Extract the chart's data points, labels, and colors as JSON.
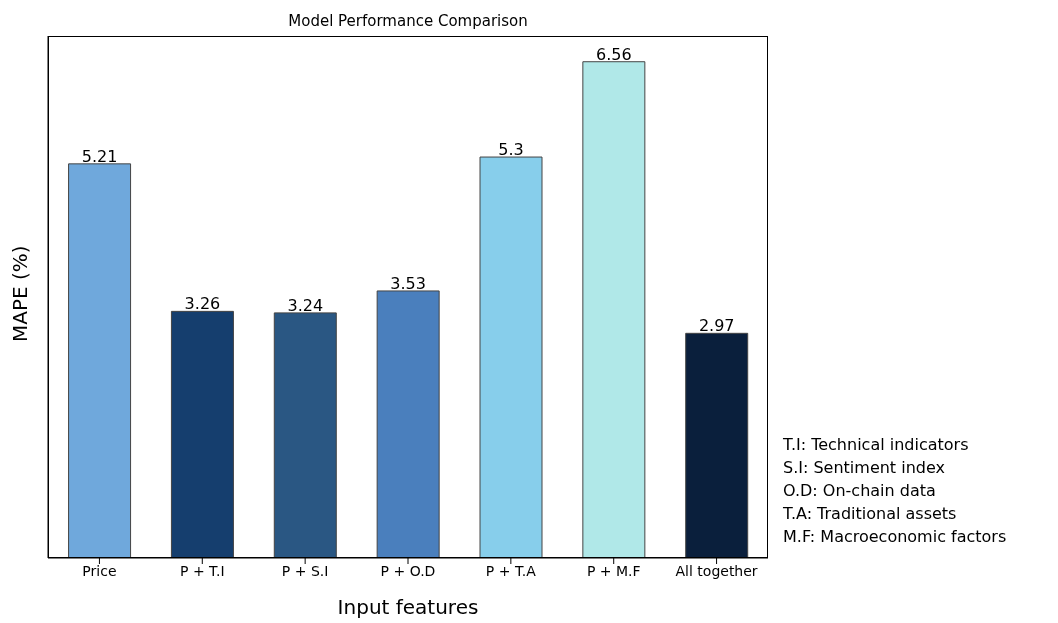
{
  "chart_data": {
    "type": "bar",
    "title": "Model Performance Comparison",
    "xlabel": "Input features",
    "ylabel": "MAPE (%)",
    "categories": [
      "Price",
      "P + T.I",
      "P + S.I",
      "P + O.D",
      "P + T.A",
      "P + M.F",
      "All together"
    ],
    "values": [
      5.21,
      3.26,
      3.24,
      3.53,
      5.3,
      6.56,
      2.97
    ],
    "colors": [
      "#6fa8dc",
      "#153e6e",
      "#2a5783",
      "#4a7fbd",
      "#87ceeb",
      "#b0e8e8",
      "#0a1f3c"
    ],
    "ylim": [
      0,
      6.9
    ],
    "tick_labels": "x",
    "data_labels": true,
    "grid": false,
    "annotations": [
      "T.I: Technical indicators",
      "S.I: Sentiment index",
      "O.D: On-chain data",
      "T.A: Traditional assets",
      "M.F: Macroeconomic factors"
    ]
  }
}
